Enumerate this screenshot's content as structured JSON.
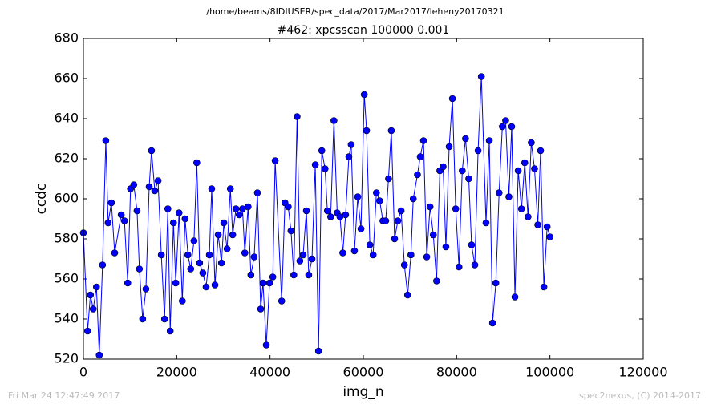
{
  "chart_data": {
    "type": "line",
    "suptitle": "/home/beams/8IDIUSER/spec_data/2017/Mar2017/leheny20170321",
    "title": "#462: xpcsscan 100000 0.001",
    "xlabel": "img_n",
    "ylabel": "ccdc",
    "footer_left": "Fri Mar 24 12:47:49 2017",
    "footer_right": "spec2nexus, (C) 2014-2017",
    "xlim": [
      0,
      120000
    ],
    "xticks": [
      0,
      20000,
      40000,
      60000,
      80000,
      100000,
      120000
    ],
    "ylim": [
      520,
      680
    ],
    "yticks": [
      520,
      540,
      560,
      580,
      600,
      620,
      640,
      660,
      680
    ],
    "grid": false,
    "x": [
      0,
      900,
      1500,
      2100,
      2800,
      3400,
      4100,
      4800,
      5300,
      6000,
      6700,
      8100,
      8800,
      9500,
      10100,
      10800,
      11500,
      12000,
      12700,
      13400,
      14100,
      14600,
      15300,
      16000,
      16700,
      17400,
      18100,
      18600,
      19300,
      19800,
      20500,
      21200,
      21800,
      22400,
      23000,
      23700,
      24300,
      24900,
      25600,
      26300,
      27000,
      27500,
      28200,
      28900,
      29600,
      30100,
      30800,
      31500,
      32000,
      32700,
      33400,
      34100,
      34600,
      35300,
      35900,
      36600,
      37300,
      38000,
      38500,
      39200,
      39900,
      40600,
      41100,
      42500,
      43200,
      43900,
      44500,
      45100,
      45800,
      46400,
      47100,
      47800,
      48300,
      49000,
      49700,
      50400,
      51100,
      51800,
      52300,
      53000,
      53700,
      54400,
      55000,
      55600,
      56200,
      56900,
      57400,
      58100,
      58800,
      59500,
      60200,
      60700,
      61400,
      62100,
      62800,
      63500,
      64200,
      64800,
      65400,
      66000,
      66700,
      67400,
      68100,
      68800,
      69500,
      70200,
      70700,
      71600,
      72200,
      72900,
      73600,
      74300,
      75000,
      75700,
      76400,
      77100,
      77700,
      78400,
      79100,
      79800,
      80500,
      81200,
      81900,
      82600,
      83200,
      83900,
      84600,
      85300,
      86300,
      87000,
      87700,
      88400,
      89100,
      89800,
      90500,
      91200,
      91800,
      92500,
      93200,
      93900,
      94600,
      95300,
      96000,
      96700,
      97400,
      98000,
      98700,
      99400,
      100000
    ],
    "series": [
      {
        "color": "#0000ff",
        "values": [
          583,
          534,
          552,
          545,
          556,
          522,
          567,
          629,
          588,
          598,
          573,
          592,
          589,
          558,
          605,
          607,
          594,
          565,
          540,
          555,
          606,
          624,
          604,
          609,
          572,
          540,
          595,
          534,
          588,
          558,
          593,
          549,
          590,
          572,
          565,
          579,
          618,
          568,
          563,
          556,
          572,
          605,
          557,
          582,
          568,
          588,
          575,
          605,
          582,
          595,
          592,
          595,
          573,
          596,
          562,
          571,
          603,
          545,
          558,
          527,
          558,
          561,
          619,
          549,
          598,
          596,
          584,
          562,
          641,
          569,
          572,
          594,
          562,
          570,
          617,
          524,
          624,
          615,
          594,
          591,
          639,
          593,
          591,
          573,
          592,
          621,
          627,
          574,
          601,
          585,
          652,
          634,
          577,
          572,
          603,
          599,
          589,
          589,
          610,
          634,
          580,
          589,
          594,
          567,
          552,
          572,
          600,
          612,
          621,
          629,
          571,
          596,
          582,
          559,
          614,
          616,
          576,
          626,
          650,
          595,
          566,
          614,
          630,
          610,
          577,
          567,
          624,
          661,
          588,
          629,
          538,
          558,
          603,
          636,
          639,
          601,
          636,
          551,
          614,
          595,
          618,
          591,
          628,
          615,
          587,
          624,
          556,
          586,
          581
        ]
      }
    ]
  }
}
